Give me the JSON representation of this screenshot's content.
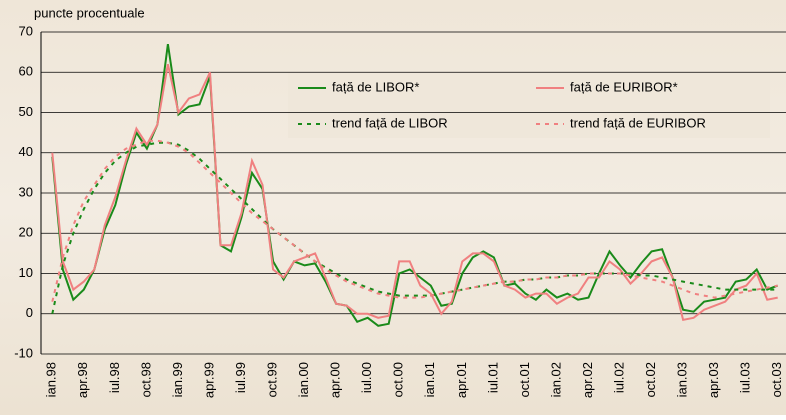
{
  "chart_data": {
    "type": "line",
    "y_label": "puncte procentuale",
    "categories": [
      "ian.98",
      null,
      null,
      "apr.98",
      null,
      null,
      "iul.98",
      null,
      null,
      "oct.98",
      null,
      null,
      "ian.99",
      null,
      null,
      "apr.99",
      null,
      null,
      "iul.99",
      null,
      null,
      "oct.99",
      null,
      null,
      "ian.00",
      null,
      null,
      "apr.00",
      null,
      null,
      "iul.00",
      null,
      null,
      "oct.00",
      null,
      null,
      "ian.01",
      null,
      null,
      "apr.01",
      null,
      null,
      "iul.01",
      null,
      null,
      "oct.01",
      null,
      null,
      "ian.02",
      null,
      null,
      "apr.02",
      null,
      null,
      "iul.02",
      null,
      null,
      "oct.02",
      null,
      null,
      "ian.03",
      null,
      null,
      "apr.03",
      null,
      null,
      "iul.03",
      null,
      null,
      "oct.03"
    ],
    "series": [
      {
        "name": "față de LIBOR*",
        "color": "#1a8a1a",
        "dashed": false,
        "values": [
          39,
          11,
          3.5,
          6,
          11,
          21,
          27,
          37,
          45,
          41,
          47,
          67,
          49.5,
          51.5,
          52,
          59,
          17,
          15.5,
          24,
          35,
          31,
          13,
          8.5,
          13,
          12,
          12.5,
          8,
          2.5,
          2,
          -2,
          -1,
          -3,
          -2.5,
          10,
          11,
          9,
          7,
          2,
          2.5,
          10,
          14,
          15.5,
          14,
          7,
          7.5,
          5,
          3.5,
          6,
          4,
          5,
          3.5,
          4,
          10,
          15.5,
          12,
          9,
          12.5,
          15.5,
          16,
          9,
          1,
          0.5,
          3,
          3.5,
          4,
          8,
          8.5,
          11,
          6,
          7
        ]
      },
      {
        "name": "față de EURIBOR*",
        "color": "#f08080",
        "dashed": false,
        "values": [
          40,
          13,
          6,
          8,
          11,
          22,
          29,
          38,
          46,
          42,
          47,
          62,
          50,
          53.5,
          54.5,
          60,
          17,
          17,
          25,
          38,
          32,
          11,
          9,
          13,
          14,
          15,
          9,
          2.5,
          2,
          0,
          0,
          -1,
          -0.5,
          13,
          13,
          7,
          5,
          0,
          3,
          13,
          15,
          15,
          13,
          7,
          6,
          4,
          5,
          5,
          2.5,
          4,
          5,
          9,
          9,
          13,
          11,
          7.5,
          10,
          13,
          14,
          9,
          -1.5,
          -1,
          1,
          2,
          3,
          6,
          7,
          10,
          3.5,
          4
        ]
      },
      {
        "name": "trend față de LIBOR",
        "color": "#1a8a1a",
        "dashed": true,
        "values": [
          0,
          12,
          20,
          26,
          31,
          35,
          38,
          40,
          41.5,
          42,
          42.5,
          42.5,
          42,
          40.5,
          38.5,
          36,
          33.5,
          31,
          28.5,
          26,
          23.5,
          21,
          19,
          17,
          15,
          13,
          11.5,
          10,
          8.5,
          7.5,
          6.5,
          5.5,
          5,
          4.5,
          4.5,
          4.5,
          4.5,
          5,
          5.5,
          6,
          6.5,
          7,
          7.5,
          8,
          8,
          8.5,
          8.5,
          9,
          9,
          9.5,
          9.5,
          10,
          10,
          10,
          10,
          10,
          9.5,
          9.5,
          9,
          8.5,
          8,
          7.5,
          7,
          6.5,
          6,
          6,
          6,
          6,
          6,
          6
        ]
      },
      {
        "name": "trend față de EURIBOR",
        "color": "#f08080",
        "dashed": true,
        "values": [
          3,
          14,
          22,
          28,
          32,
          36,
          39,
          41,
          42,
          43,
          43,
          42.5,
          41.5,
          40,
          37.5,
          35,
          32.5,
          30,
          27.5,
          25,
          23,
          21,
          19,
          17,
          15,
          13,
          11,
          9.5,
          8,
          7,
          6,
          5,
          4.5,
          4,
          4,
          4,
          4.5,
          5,
          5.5,
          6,
          6.5,
          7,
          7.5,
          8,
          8,
          8.5,
          8.5,
          9,
          9,
          9.5,
          9.5,
          10,
          10,
          10,
          10,
          9.5,
          9,
          8.5,
          8,
          7,
          6,
          5,
          4.5,
          4,
          4.5,
          5,
          5.5,
          6,
          6.5,
          7
        ]
      }
    ],
    "ylim": [
      -10,
      70
    ],
    "yticks": [
      -10,
      0,
      10,
      20,
      30,
      40,
      50,
      60,
      70
    ],
    "grid": true
  }
}
